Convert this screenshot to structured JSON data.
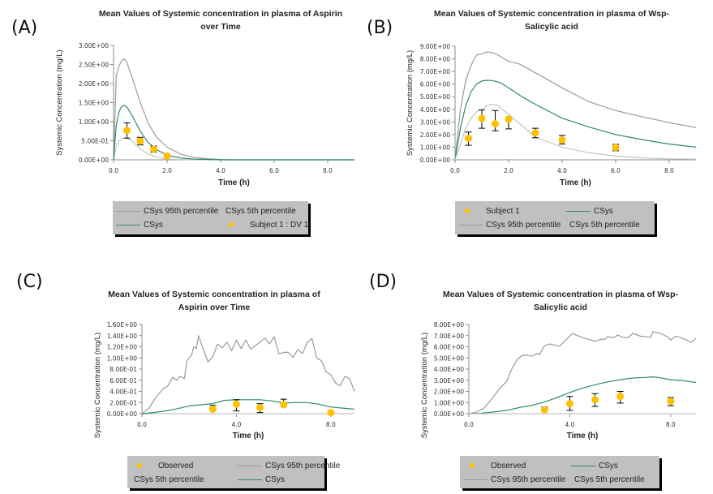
{
  "panel_labels": [
    "(A)",
    "(B)",
    "(C)",
    "(D)"
  ],
  "colors": {
    "p95": "#9a9a9a",
    "p5": "#c4c4c4",
    "csys": "#2e8b66",
    "observed": "#ffc000",
    "errorbar": "#000000",
    "axis": "#8c8c8c",
    "legend_bg": "#c0c0c0"
  },
  "chart_data": [
    {
      "id": "A",
      "type": "line",
      "title": "Mean Values of Systemic concentration  in plasma of Aspirin over Time",
      "title_lines": [
        "Mean Values of Systemic concentration  in plasma of Aspirin",
        "over Time"
      ],
      "xlabel": "Time (h)",
      "ylabel": "Systemic Concentration (mg/L)",
      "xlim": [
        0,
        9
      ],
      "ylim": [
        0,
        3.0
      ],
      "x_ticks": [
        0,
        2,
        4,
        6,
        8
      ],
      "x_tick_labels": [
        "0.0",
        "2.0",
        "4.0",
        "6.0",
        "8.0"
      ],
      "y_ticks": [
        0,
        0.5,
        1.0,
        1.5,
        2.0,
        2.5,
        3.0
      ],
      "y_tick_labels": [
        "0.00E+00",
        "5.00E-01",
        "1.00E+00",
        "1.50E+00",
        "2.00E+00",
        "2.50E+00",
        "3.00E+00"
      ],
      "grid": false,
      "series": [
        {
          "name": "CSys 95th percentile",
          "kind": "line",
          "color_key": "p95",
          "x": [
            0,
            0.1,
            0.2,
            0.3,
            0.4,
            0.5,
            0.7,
            1.0,
            1.3,
            1.6,
            2.0,
            2.5,
            3.0,
            3.5,
            4.0,
            4.5,
            9
          ],
          "y": [
            0,
            2.2,
            2.45,
            2.6,
            2.65,
            2.55,
            2.15,
            1.5,
            0.95,
            0.6,
            0.33,
            0.15,
            0.06,
            0.03,
            0.01,
            0.0,
            0.0
          ]
        },
        {
          "name": "CSys 5th percentile",
          "kind": "line",
          "color_key": "p5",
          "x": [
            0,
            0.1,
            0.2,
            0.4,
            0.6,
            0.8,
            1.0,
            1.3,
            1.6,
            2.0,
            2.5,
            3.0,
            9
          ],
          "y": [
            0,
            0.35,
            0.5,
            0.57,
            0.54,
            0.42,
            0.28,
            0.15,
            0.07,
            0.02,
            0.01,
            0.0,
            0.0
          ]
        },
        {
          "name": "CSys",
          "kind": "line",
          "color_key": "csys",
          "x": [
            0,
            0.1,
            0.2,
            0.3,
            0.4,
            0.5,
            0.7,
            1.0,
            1.3,
            1.6,
            2.0,
            2.5,
            3.0,
            3.5,
            4.0,
            9
          ],
          "y": [
            0,
            0.9,
            1.25,
            1.4,
            1.43,
            1.38,
            1.15,
            0.75,
            0.45,
            0.27,
            0.12,
            0.05,
            0.02,
            0.01,
            0.0,
            0.0
          ]
        },
        {
          "name": "Subject 1 : DV 1",
          "kind": "scatter",
          "color_key": "observed",
          "x": [
            0.5,
            1.0,
            1.5,
            2.0
          ],
          "y": [
            0.77,
            0.49,
            0.28,
            0.1
          ],
          "err_low": [
            0.57,
            0.39,
            0.2,
            0.1
          ],
          "err_high": [
            0.97,
            0.59,
            0.36,
            0.1
          ]
        }
      ],
      "legend": {
        "placement": "below",
        "items": [
          {
            "label": "CSys 95th percentile",
            "swatch": "line",
            "color_key": "p95"
          },
          {
            "label": "CSys 5th percentile",
            "swatch": "none",
            "color_key": "p5"
          },
          {
            "label": "CSys",
            "swatch": "line",
            "color_key": "csys"
          },
          {
            "label": "Subject 1 : DV 1",
            "swatch": "dot",
            "color_key": "observed"
          }
        ]
      }
    },
    {
      "id": "B",
      "type": "line",
      "title": "Mean Values of Systemic concentration  in plasma of Wsp-Salicylic acid",
      "title_lines": [
        "Mean Values of Systemic concentration  in plasma of Wsp-",
        "Salicylic acid"
      ],
      "xlabel": "Time (h)",
      "ylabel": "Systemic Concentration (mg/L)",
      "xlim": [
        0,
        9
      ],
      "ylim": [
        0,
        9.0
      ],
      "x_ticks": [
        0,
        2,
        4,
        6,
        8
      ],
      "x_tick_labels": [
        "0.0",
        "2.0",
        "4.0",
        "6.0",
        "8.0"
      ],
      "y_ticks": [
        0,
        1,
        2,
        3,
        4,
        5,
        6,
        7,
        8,
        9
      ],
      "y_tick_labels": [
        "0.00E+00",
        "1.00E+00",
        "2.00E+00",
        "3.00E+00",
        "4.00E+00",
        "5.00E+00",
        "6.00E+00",
        "7.00E+00",
        "8.00E+00",
        "9.00E+00"
      ],
      "grid": false,
      "series": [
        {
          "name": "CSys 95th percentile",
          "kind": "line",
          "color_key": "p95",
          "x": [
            0,
            0.2,
            0.4,
            0.6,
            0.8,
            1.0,
            1.2,
            1.4,
            1.6,
            2.0,
            2.4,
            3.0,
            4.0,
            5.0,
            6.0,
            7.0,
            8.0,
            9.0
          ],
          "y": [
            0,
            4.0,
            6.3,
            7.5,
            8.3,
            8.4,
            8.55,
            8.5,
            8.3,
            7.8,
            7.6,
            6.9,
            5.7,
            4.6,
            3.9,
            3.4,
            2.95,
            2.55
          ]
        },
        {
          "name": "CSys",
          "kind": "line",
          "color_key": "csys",
          "x": [
            0,
            0.2,
            0.4,
            0.6,
            0.8,
            1.0,
            1.2,
            1.4,
            1.7,
            2.0,
            2.5,
            3.0,
            4.0,
            5.0,
            6.0,
            7.0,
            8.0,
            9.0
          ],
          "y": [
            0,
            2.5,
            4.3,
            5.4,
            6.0,
            6.25,
            6.3,
            6.28,
            6.1,
            5.7,
            5.0,
            4.4,
            3.3,
            2.6,
            2.0,
            1.6,
            1.25,
            1.0
          ]
        },
        {
          "name": "CSys 5th percentile",
          "kind": "line",
          "color_key": "p5",
          "x": [
            0,
            0.2,
            0.4,
            0.6,
            0.8,
            1.0,
            1.2,
            1.4,
            1.6,
            2.0,
            2.5,
            3.0,
            4.0,
            5.0,
            6.0,
            7.0,
            8.0,
            9.0
          ],
          "y": [
            0,
            1.2,
            2.5,
            3.3,
            3.8,
            4.0,
            4.3,
            4.4,
            4.3,
            3.6,
            2.7,
            1.8,
            1.0,
            0.55,
            0.3,
            0.15,
            0.08,
            0.05
          ]
        },
        {
          "name": "Subject 1",
          "kind": "scatter",
          "color_key": "observed",
          "x": [
            0.5,
            1.0,
            1.5,
            2.0,
            3.0,
            4.0,
            6.0
          ],
          "y": [
            1.7,
            3.28,
            2.85,
            3.22,
            2.13,
            1.57,
            0.98
          ],
          "err_low": [
            1.15,
            2.5,
            2.3,
            2.45,
            1.75,
            1.25,
            0.72
          ],
          "err_high": [
            2.2,
            3.95,
            3.9,
            3.22,
            2.5,
            1.93,
            1.23
          ]
        }
      ],
      "legend": {
        "placement": "below",
        "items": [
          {
            "label": "Subject 1",
            "swatch": "dot",
            "color_key": "observed"
          },
          {
            "label": "CSys",
            "swatch": "line",
            "color_key": "csys"
          },
          {
            "label": "CSys 95th percentile",
            "swatch": "line",
            "color_key": "p95"
          },
          {
            "label": "CSys 5th percentile",
            "swatch": "none",
            "color_key": "p5"
          }
        ]
      }
    },
    {
      "id": "C",
      "type": "line",
      "title": "Mean Values of Systemic concentration  in plasma of Aspirin over Time",
      "title_lines": [
        "Mean Values of Systemic concentration  in plasma of",
        "Aspirin over Time"
      ],
      "xlabel": "Time (h)",
      "ylabel": "Systemic Concentration (mg/L)",
      "xlim": [
        0,
        9
      ],
      "ylim": [
        0,
        1.6
      ],
      "x_ticks": [
        0,
        4,
        8
      ],
      "x_tick_labels": [
        "0.0",
        "4.0",
        "8.0"
      ],
      "y_ticks": [
        0,
        0.2,
        0.4,
        0.6,
        0.8,
        1.0,
        1.2,
        1.4,
        1.6
      ],
      "y_tick_labels": [
        "0.00E+00",
        "2.00E-01",
        "4.00E-01",
        "6.00E-01",
        "8.00E-01",
        "1.00E+00",
        "1.20E+00",
        "1.40E+00",
        "1.60E+00"
      ],
      "grid": false,
      "series": [
        {
          "name": "CSys 95th percentile",
          "kind": "line",
          "color_key": "p95",
          "x": [
            0,
            0.3,
            0.6,
            0.9,
            1.1,
            1.3,
            1.5,
            1.6,
            1.8,
            1.9,
            2.1,
            2.2,
            2.3,
            2.4,
            2.6,
            2.8,
            3.0,
            3.2,
            3.4,
            3.6,
            3.8,
            4.0,
            4.2,
            4.4,
            4.6,
            4.8,
            5.0,
            5.2,
            5.4,
            5.6,
            5.8,
            6.0,
            6.2,
            6.4,
            6.6,
            6.8,
            7.0,
            7.2,
            7.4,
            7.6,
            7.8,
            8.0,
            8.2,
            8.4,
            8.6,
            8.8,
            9.0
          ],
          "y": [
            0,
            0.1,
            0.3,
            0.45,
            0.5,
            0.65,
            0.6,
            0.67,
            0.63,
            0.95,
            1.05,
            1.2,
            1.17,
            1.4,
            1.15,
            0.93,
            1.02,
            1.25,
            1.18,
            1.28,
            1.13,
            1.32,
            1.17,
            1.32,
            1.16,
            1.22,
            1.28,
            1.36,
            1.25,
            1.38,
            1.07,
            1.1,
            1.1,
            1.01,
            1.15,
            1.08,
            1.28,
            1.35,
            1.0,
            0.95,
            0.75,
            0.7,
            0.55,
            0.5,
            0.67,
            0.62,
            0.4
          ]
        },
        {
          "name": "CSys 5th percentile",
          "kind": "line",
          "color_key": "p5",
          "x": [
            0,
            9
          ],
          "y": [
            0,
            0
          ]
        },
        {
          "name": "CSys",
          "kind": "line",
          "color_key": "csys",
          "x": [
            0,
            0.5,
            1.0,
            1.5,
            2.0,
            2.5,
            3.0,
            3.5,
            4.0,
            4.5,
            5.0,
            5.5,
            6.0,
            6.5,
            7.0,
            7.5,
            8.0,
            8.5,
            9.0
          ],
          "y": [
            0,
            0.02,
            0.05,
            0.09,
            0.14,
            0.16,
            0.18,
            0.24,
            0.25,
            0.25,
            0.25,
            0.23,
            0.19,
            0.2,
            0.2,
            0.17,
            0.12,
            0.1,
            0.08
          ]
        },
        {
          "name": "Observed",
          "kind": "scatter",
          "color_key": "observed",
          "x": [
            3.0,
            4.0,
            5.0,
            6.0,
            8.0
          ],
          "y": [
            0.08,
            0.17,
            0.11,
            0.16,
            0.02
          ],
          "err_low": [
            0.08,
            0.05,
            0.02,
            0.16,
            0.02
          ],
          "err_high": [
            0.15,
            0.25,
            0.18,
            0.26,
            0.02
          ]
        }
      ],
      "legend": {
        "placement": "below",
        "items": [
          {
            "label": "Observed",
            "swatch": "dot",
            "color_key": "observed"
          },
          {
            "label": "CSys 95th percentile",
            "swatch": "line",
            "color_key": "p95"
          },
          {
            "label": "CSys 5th percentile",
            "swatch": "none",
            "color_key": "p5"
          },
          {
            "label": "CSys",
            "swatch": "line",
            "color_key": "csys"
          }
        ]
      }
    },
    {
      "id": "D",
      "type": "line",
      "title": "Mean Values of Systemic concentration  in plasma of Wsp-Salicylic acid",
      "title_lines": [
        "Mean Values of Systemic concentration  in plasma of Wsp-",
        "Salicylic acid"
      ],
      "xlabel": "Time (h)",
      "ylabel": "Systemic Concentration (mg/L)",
      "xlim": [
        0,
        9
      ],
      "ylim": [
        0,
        8.0
      ],
      "x_ticks": [
        0,
        4,
        8
      ],
      "x_tick_labels": [
        "0.0",
        "4.0",
        "8.0"
      ],
      "y_ticks": [
        0,
        1,
        2,
        3,
        4,
        5,
        6,
        7,
        8
      ],
      "y_tick_labels": [
        "0.00E+00",
        "1.00E+00",
        "2.00E+00",
        "3.00E+00",
        "4.00E+00",
        "5.00E+00",
        "6.00E+00",
        "7.00E+00",
        "8.00E+00"
      ],
      "grid": false,
      "series": [
        {
          "name": "CSys 95th percentile",
          "kind": "line",
          "color_key": "p95",
          "x": [
            0,
            0.3,
            0.6,
            0.9,
            1.2,
            1.5,
            1.7,
            1.9,
            2.1,
            2.3,
            2.5,
            2.7,
            2.8,
            3.0,
            3.2,
            3.4,
            3.6,
            3.8,
            4.0,
            4.1,
            4.4,
            4.7,
            5.0,
            5.2,
            5.4,
            5.5,
            5.7,
            5.9,
            6.1,
            6.3,
            6.5,
            6.8,
            7.0,
            7.2,
            7.3,
            7.6,
            7.9,
            8.0,
            8.2,
            8.5,
            8.8,
            9.0
          ],
          "y": [
            0,
            0.15,
            0.5,
            1.3,
            2.2,
            2.9,
            4.0,
            4.8,
            5.2,
            5.25,
            5.15,
            5.4,
            5.3,
            6.1,
            6.25,
            6.15,
            6.05,
            6.5,
            6.95,
            7.2,
            6.9,
            6.7,
            6.5,
            6.65,
            6.7,
            6.9,
            6.8,
            7.05,
            6.85,
            6.8,
            7.2,
            6.95,
            6.9,
            6.85,
            7.35,
            7.2,
            6.85,
            6.6,
            6.95,
            6.75,
            6.4,
            6.75
          ]
        },
        {
          "name": "CSys",
          "kind": "line",
          "color_key": "csys",
          "x": [
            0,
            0.5,
            1.0,
            1.5,
            2.0,
            2.5,
            3.0,
            3.5,
            4.0,
            4.5,
            5.0,
            5.5,
            6.0,
            6.5,
            7.0,
            7.3,
            7.5,
            8.0,
            8.5,
            9.0
          ],
          "y": [
            0,
            0.05,
            0.15,
            0.3,
            0.55,
            0.75,
            1.05,
            1.45,
            1.9,
            2.3,
            2.6,
            2.85,
            3.05,
            3.2,
            3.25,
            3.3,
            3.25,
            3.05,
            2.95,
            2.8
          ]
        },
        {
          "name": "CSys 5th percentile",
          "kind": "line",
          "color_key": "p5",
          "x": [
            0,
            9
          ],
          "y": [
            0,
            0
          ]
        },
        {
          "name": "Observed",
          "kind": "scatter",
          "color_key": "observed",
          "x": [
            3.0,
            4.0,
            5.0,
            6.0,
            8.0
          ],
          "y": [
            0.35,
            0.9,
            1.25,
            1.55,
            1.12
          ],
          "err_low": [
            0.35,
            0.3,
            0.65,
            0.95,
            0.72
          ],
          "err_high": [
            0.6,
            1.55,
            1.8,
            2.0,
            1.45
          ]
        }
      ],
      "legend": {
        "placement": "below",
        "items": [
          {
            "label": "Observed",
            "swatch": "dot",
            "color_key": "observed"
          },
          {
            "label": "CSys",
            "swatch": "line",
            "color_key": "csys"
          },
          {
            "label": "CSys 95th percentile",
            "swatch": "line",
            "color_key": "p95"
          },
          {
            "label": "CSys 5th percentile",
            "swatch": "none",
            "color_key": "p5"
          }
        ]
      }
    }
  ]
}
